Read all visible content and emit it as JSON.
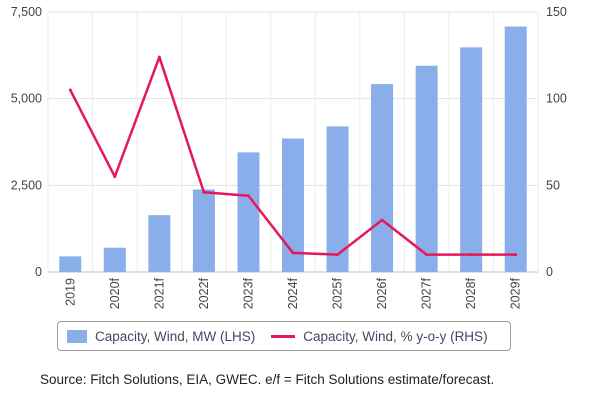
{
  "chart_data": {
    "type": "bar",
    "categories": [
      "2019",
      "2020f",
      "2021f",
      "2022f",
      "2023f",
      "2024f",
      "2025f",
      "2026f",
      "2027f",
      "2028f",
      "2029f"
    ],
    "series": [
      {
        "name": "Capacity, Wind, MW (LHS)",
        "type": "bar",
        "axis": "left",
        "color": "#8aaee9",
        "values": [
          450,
          700,
          1640,
          2380,
          3450,
          3850,
          4200,
          5420,
          5950,
          6480,
          7080
        ]
      },
      {
        "name": "Capacity, Wind, % y-o-y (RHS)",
        "type": "line",
        "axis": "right",
        "color": "#e5195a",
        "values": [
          105,
          55,
          124,
          46,
          44,
          11,
          10,
          30,
          10,
          10,
          10
        ]
      }
    ],
    "left_axis": {
      "ylim": [
        0,
        7500
      ],
      "ticks": [
        "0",
        "2,500",
        "5,000",
        "7,500"
      ],
      "tick_values": [
        0,
        2500,
        5000,
        7500
      ]
    },
    "right_axis": {
      "ylim": [
        0,
        150
      ],
      "ticks": [
        "0",
        "50",
        "100",
        "150"
      ],
      "tick_values": [
        0,
        50,
        100,
        150
      ]
    },
    "grid": true,
    "legend_position": "bottom"
  },
  "legend": {
    "bar_label": "Capacity, Wind, MW (LHS)",
    "line_label": "Capacity, Wind, % y-o-y (RHS)"
  },
  "source_note": "Source: Fitch Solutions, EIA, GWEC. e/f = Fitch Solutions estimate/forecast."
}
